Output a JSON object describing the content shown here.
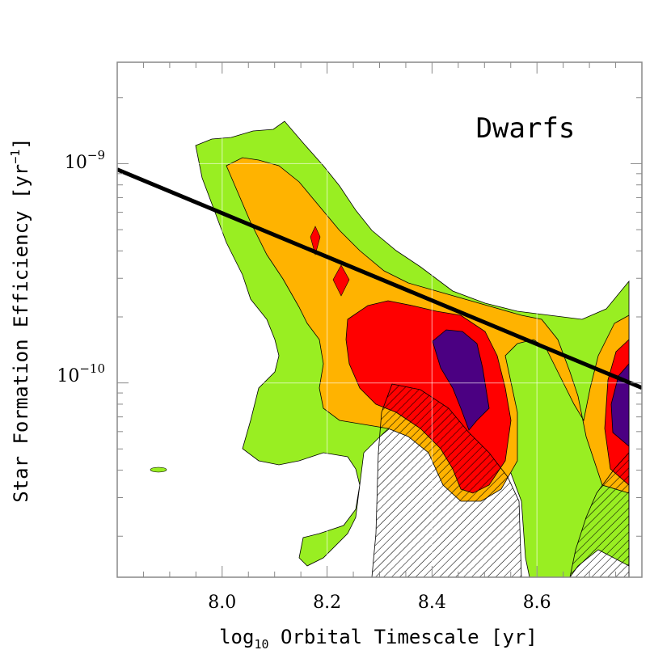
{
  "chart_data": {
    "type": "contour",
    "xlabel": {
      "pre": "log",
      "sub": "10",
      "post": " Orbital Timescale [yr]"
    },
    "ylabel": {
      "pre": "Star Formation Efficiency [yr",
      "sup": "−1",
      "post": "]"
    },
    "annotation": "Dwarfs",
    "xlim": [
      7.8,
      8.8
    ],
    "ylim": [
      1.3e-11,
      2.9e-09
    ],
    "y_scale": "log",
    "x_ticks": [
      {
        "value": 8.0,
        "label": "8.0"
      },
      {
        "value": 8.2,
        "label": "8.2"
      },
      {
        "value": 8.4,
        "label": "8.4"
      },
      {
        "value": 8.6,
        "label": "8.6"
      }
    ],
    "y_ticks": [
      {
        "value": 1e-09,
        "base": "10",
        "exp": "−9"
      },
      {
        "value": 1e-10,
        "base": "10",
        "exp": "−10"
      }
    ],
    "fit_line": {
      "x": [
        7.8,
        8.8
      ],
      "y": [
        9.4e-10,
        9.5e-11
      ],
      "color": "#000000"
    },
    "grid": true,
    "contour_colors": {
      "level_1": "#99ee22",
      "level_2": "#ffb300",
      "level_3": "#ff0000",
      "level_4": "#4b0082"
    },
    "hatch_color": "#000000"
  }
}
